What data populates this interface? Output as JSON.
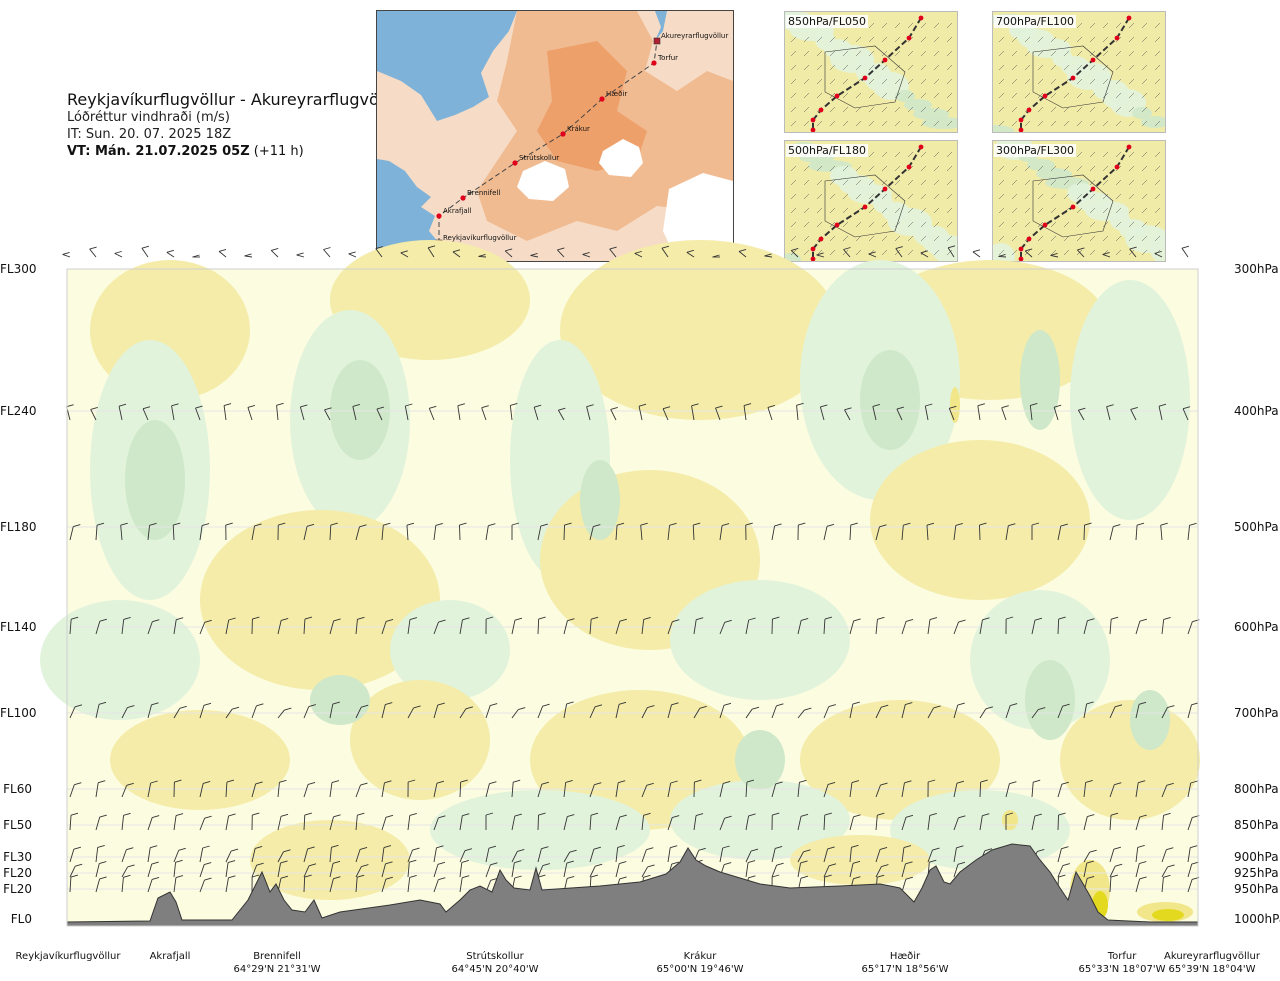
{
  "header": {
    "route_title": "Reykjavíkurflugvöllur - Akureyrarflugvöllur",
    "parameter": "Lóðréttur vindhraði (m/s)",
    "issue_time": "IT: Sun. 20. 07. 2025 18Z",
    "valid_time": "VT: Mán. 21.07.2025 05Z",
    "lead_time": "(+11 h)"
  },
  "route_map": {
    "waypoints": [
      {
        "name": "Akureyrarflugvöllur"
      },
      {
        "name": "Torfur"
      },
      {
        "name": "Hæðir"
      },
      {
        "name": "Krákur"
      },
      {
        "name": "Strútskollur"
      },
      {
        "name": "Brennifell"
      },
      {
        "name": "Akrafjall"
      },
      {
        "name": "Reykjavíkurflugvöllur"
      }
    ],
    "colors": {
      "sea": "#7fb2d8",
      "low_land": "#f6dcc6",
      "high_land": "#eea06b",
      "glacier": "#ffffff",
      "route": "#444444",
      "waypoint": "#e0001b"
    }
  },
  "level_maps": [
    {
      "label": "850hPa/FL050"
    },
    {
      "label": "700hPa/FL100"
    },
    {
      "label": "500hPa/FL180"
    },
    {
      "label": "300hPa/FL300"
    }
  ],
  "cross_section": {
    "levels": [
      {
        "fl": "FL300",
        "hpa": "300hPa"
      },
      {
        "fl": "FL240",
        "hpa": "400hPa"
      },
      {
        "fl": "FL180",
        "hpa": "500hPa"
      },
      {
        "fl": "FL140",
        "hpa": "600hPa"
      },
      {
        "fl": "FL100",
        "hpa": "700hPa"
      },
      {
        "fl": "FL60",
        "hpa": "800hPa"
      },
      {
        "fl": "FL50",
        "hpa": "850hPa"
      },
      {
        "fl": "FL30",
        "hpa": "900hPa"
      },
      {
        "fl": "FL20",
        "hpa": "925hPa"
      },
      {
        "fl": "FL20",
        "hpa": "950hPa"
      },
      {
        "fl": "FL0",
        "hpa": "1000hPa"
      }
    ],
    "points": [
      {
        "name": "Reykjavíkurflugvöllur",
        "coord": ""
      },
      {
        "name": "Akrafjall",
        "coord": ""
      },
      {
        "name": "Brennifell",
        "coord": "64°29'N 21°31'W"
      },
      {
        "name": "Strútskollur",
        "coord": "64°45'N 20°40'W"
      },
      {
        "name": "Krákur",
        "coord": "65°00'N 19°46'W"
      },
      {
        "name": "Hæðir",
        "coord": "65°17'N 18°56'W"
      },
      {
        "name": "Torfur",
        "coord": "65°33'N 18°07'W"
      },
      {
        "name": "Akureyrarflugvöllur",
        "coord": "65°39'N 18°04'W"
      }
    ],
    "colors": {
      "pale": "#fcfce0",
      "light_up": "#f4eca8",
      "up": "#f2e68a",
      "strong_up": "#e3da20",
      "light_down": "#e2f3dc",
      "down": "#cfe8c9",
      "terrain": "#7f7f7f",
      "grid": "#e6e6e6"
    }
  }
}
